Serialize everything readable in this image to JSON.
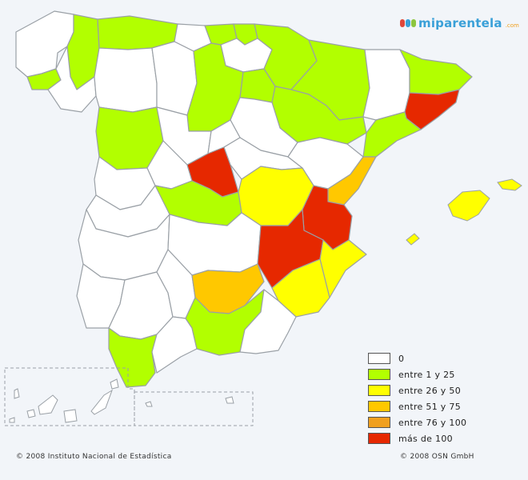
{
  "brand": {
    "name": "miparentela",
    "suffix": ".com",
    "mark_colors": [
      "#e0483a",
      "#3aa0d8",
      "#8cc63f"
    ]
  },
  "colors": {
    "zero": "#ffffff",
    "range_1_25": "#b2ff00",
    "range_26_50": "#ffff00",
    "range_51_75": "#ffc800",
    "range_76_100": "#f0a020",
    "over_100": "#e62800",
    "border": "#9aa0a6",
    "background": "#f2f5f9"
  },
  "legend": {
    "items": [
      {
        "label": "0",
        "color": "#ffffff"
      },
      {
        "label": "entre 1 y 25",
        "color": "#b2ff00"
      },
      {
        "label": "entre 26 y 50",
        "color": "#ffff00"
      },
      {
        "label": "entre 51 y 75",
        "color": "#ffc800"
      },
      {
        "label": "entre 76 y 100",
        "color": "#f0a020"
      },
      {
        "label": "más de 100",
        "color": "#e62800"
      }
    ]
  },
  "credits": {
    "left": "© 2008 Instituto Nacional de Estadística",
    "right": "© 2008 OSN GmbH"
  },
  "regions": [
    {
      "id": "a-coruna",
      "class": "0"
    },
    {
      "id": "lugo",
      "class": "1-25"
    },
    {
      "id": "asturias",
      "class": "1-25"
    },
    {
      "id": "cantabria",
      "class": "0"
    },
    {
      "id": "bizkaia",
      "class": "1-25"
    },
    {
      "id": "gipuzkoa",
      "class": "1-25"
    },
    {
      "id": "araba",
      "class": "0"
    },
    {
      "id": "navarra",
      "class": "1-25"
    },
    {
      "id": "huesca",
      "class": "1-25"
    },
    {
      "id": "lleida",
      "class": "0"
    },
    {
      "id": "girona",
      "class": "1-25"
    },
    {
      "id": "barcelona",
      "class": "mas-100"
    },
    {
      "id": "pontevedra",
      "class": "1-25"
    },
    {
      "id": "ourense",
      "class": "0"
    },
    {
      "id": "leon",
      "class": "0"
    },
    {
      "id": "palencia",
      "class": "0"
    },
    {
      "id": "burgos",
      "class": "1-25"
    },
    {
      "id": "la-rioja",
      "class": "1-25"
    },
    {
      "id": "zaragoza",
      "class": "1-25"
    },
    {
      "id": "tarragona",
      "class": "1-25"
    },
    {
      "id": "zamora",
      "class": "1-25"
    },
    {
      "id": "valladolid",
      "class": "0"
    },
    {
      "id": "soria",
      "class": "0"
    },
    {
      "id": "segovia",
      "class": "0"
    },
    {
      "id": "salamanca",
      "class": "0"
    },
    {
      "id": "avila",
      "class": "0"
    },
    {
      "id": "madrid",
      "class": "mas-100"
    },
    {
      "id": "guadalajara",
      "class": "0"
    },
    {
      "id": "teruel",
      "class": "0"
    },
    {
      "id": "castellon",
      "class": "51-75"
    },
    {
      "id": "caceres",
      "class": "0"
    },
    {
      "id": "toledo",
      "class": "1-25"
    },
    {
      "id": "cuenca",
      "class": "26-50"
    },
    {
      "id": "valencia",
      "class": "mas-100"
    },
    {
      "id": "badajoz",
      "class": "0"
    },
    {
      "id": "ciudad-real",
      "class": "0"
    },
    {
      "id": "albacete",
      "class": "mas-100"
    },
    {
      "id": "alicante",
      "class": "26-50"
    },
    {
      "id": "huelva",
      "class": "0"
    },
    {
      "id": "sevilla",
      "class": "0"
    },
    {
      "id": "cordoba",
      "class": "0"
    },
    {
      "id": "jaen",
      "class": "51-75"
    },
    {
      "id": "murcia",
      "class": "26-50"
    },
    {
      "id": "cadiz",
      "class": "1-25"
    },
    {
      "id": "malaga",
      "class": "0"
    },
    {
      "id": "granada",
      "class": "1-25"
    },
    {
      "id": "almeria",
      "class": "0"
    },
    {
      "id": "baleares",
      "class": "26-50"
    },
    {
      "id": "canarias",
      "class": "0"
    },
    {
      "id": "ceuta-melilla",
      "class": "0"
    }
  ]
}
